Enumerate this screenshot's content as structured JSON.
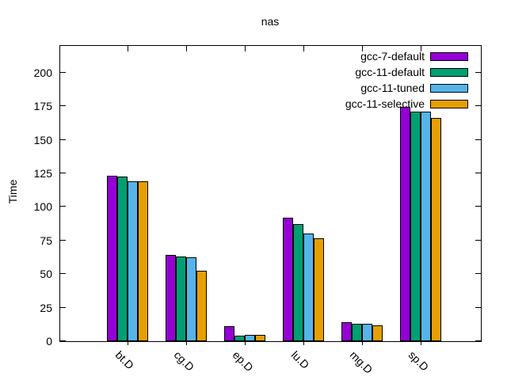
{
  "chart_data": {
    "type": "bar",
    "title": "nas",
    "xlabel": "",
    "ylabel": "Time",
    "ylim": [
      0,
      220
    ],
    "yticks": [
      0,
      25,
      50,
      75,
      100,
      125,
      150,
      175,
      200
    ],
    "categories": [
      "bt.D",
      "cg.D",
      "ep.D",
      "lu.D",
      "mg.D",
      "sp.D"
    ],
    "series": [
      {
        "name": "gcc-7-default",
        "color": "#9400d3",
        "values": [
          123,
          64.5,
          11,
          92,
          14,
          174.5
        ]
      },
      {
        "name": "gcc-11-default",
        "color": "#009e73",
        "values": [
          122.5,
          63,
          4,
          87,
          13,
          171
        ]
      },
      {
        "name": "gcc-11-tuned",
        "color": "#56b4e9",
        "values": [
          119,
          62.5,
          4.5,
          80.5,
          13,
          171
        ]
      },
      {
        "name": "gcc-11-selective",
        "color": "#e69f00",
        "values": [
          119,
          52.5,
          4.5,
          76.5,
          12,
          166.5
        ]
      }
    ],
    "legend_position": "top-right",
    "grid": false
  },
  "colors": {
    "background": "#ffffff",
    "axis": "#000000",
    "text": "#000000"
  }
}
